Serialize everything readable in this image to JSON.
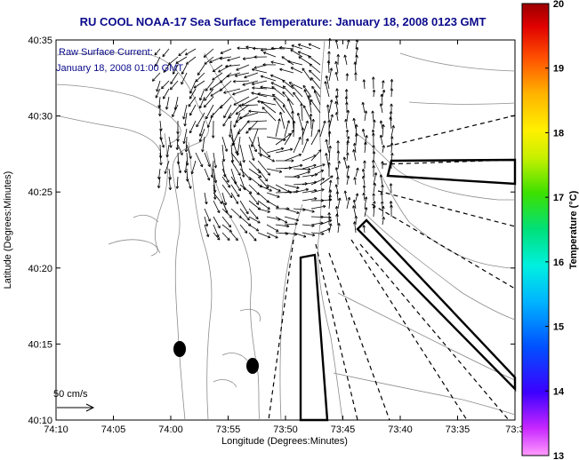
{
  "chart_data": {
    "type": "map",
    "title": "RU COOL  NOAA-17  Sea Surface Temperature:  January 18, 2008 0123 GMT",
    "annotation": [
      "Raw Surface Current:",
      "January 18, 2008 01:00 GMT"
    ],
    "xlabel": "Longitude (Degrees:Minutes)",
    "ylabel": "Latitude (Degrees:Minutes)",
    "x_ticks": [
      "74:10",
      "74:05",
      "74:00",
      "73:55",
      "73:50",
      "73:45",
      "73:40",
      "73:35",
      "73:3"
    ],
    "y_ticks": [
      "40:35",
      "40:30",
      "40:25",
      "40:20",
      "40:15",
      "40:10"
    ],
    "colorbar": {
      "label": "Temperature (°C)",
      "min": 13,
      "max": 20,
      "ticks": [
        "20",
        "19",
        "18",
        "17",
        "16",
        "15",
        "14",
        "13"
      ]
    },
    "scale_label": "50 cm/s"
  },
  "colors": {
    "title": "#0a0a8c",
    "contour": "#8c8c8c",
    "land": "#ffffff"
  }
}
